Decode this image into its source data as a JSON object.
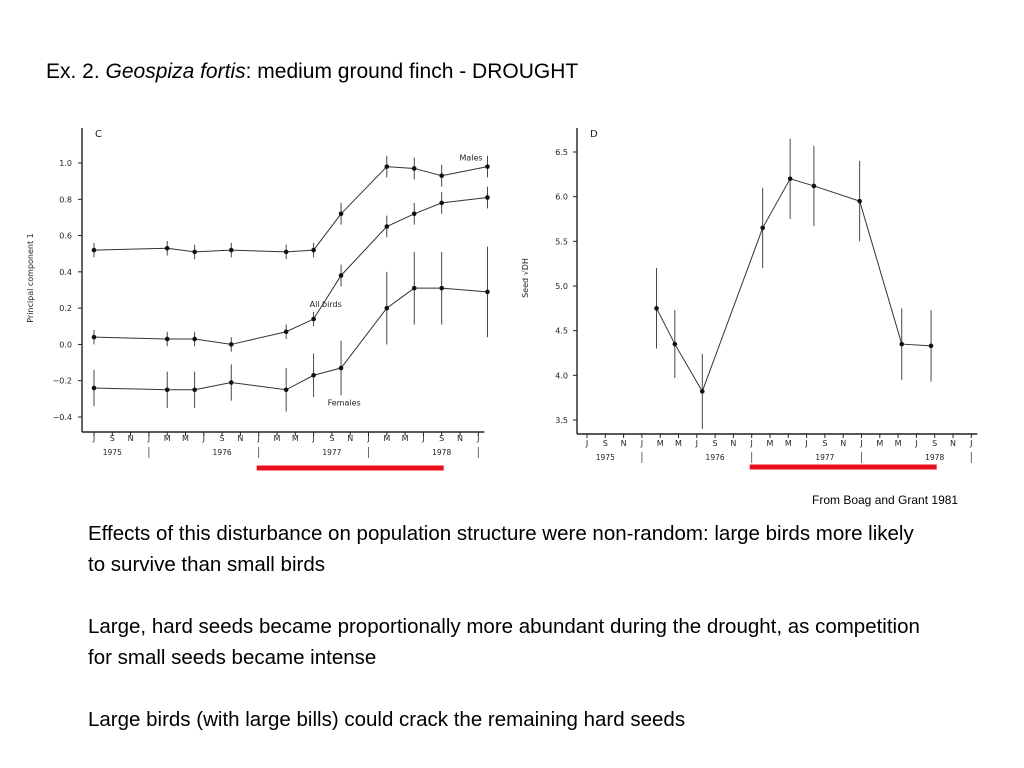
{
  "slide": {
    "title_prefix": "Ex. 2.",
    "title_species": "Geospiza fortis",
    "title_rest": ": medium ground finch - DROUGHT",
    "credit": "From Boag and Grant 1981",
    "paragraphs": [
      "Effects of this disturbance on population structure were non-random: large birds more likely to survive than small birds",
      "Large, hard seeds became proportionally more abundant during the drought, as competition for small seeds became intense",
      "Large birds (with large bills) could crack the remaining hard seeds"
    ],
    "drought_color": "#e8101a"
  },
  "chart_data": [
    {
      "type": "line",
      "panel": "C",
      "ylabel": "Principal component 1",
      "ylim": [
        -0.4,
        1.0
      ],
      "yticks": [
        -0.4,
        -0.2,
        0.0,
        0.2,
        0.4,
        0.6,
        0.8,
        1.0
      ],
      "ytick_labels": [
        "−0.4",
        "−0.2",
        "0.0",
        "0.2",
        "0.4",
        "0.6",
        "0.8",
        "1.0"
      ],
      "x_month_labels": [
        "J",
        "S",
        "N",
        "J",
        "M",
        "M",
        "J",
        "S",
        "N",
        "J",
        "M",
        "M",
        "J",
        "S",
        "N",
        "J",
        "M",
        "M",
        "J",
        "S",
        "N",
        "J"
      ],
      "x_year_labels": [
        "1975",
        "1976",
        "1977",
        "1978"
      ],
      "drought_period": [
        9,
        19
      ],
      "grid": false,
      "legend": "inline labels",
      "series": [
        {
          "name": "Males",
          "label_index": 10,
          "x": [
            0,
            4,
            5.5,
            7.5,
            10.5,
            12,
            13.5,
            16,
            17.5,
            19,
            21.5
          ],
          "y": [
            0.52,
            0.53,
            0.51,
            0.52,
            0.51,
            0.52,
            0.72,
            0.98,
            0.97,
            0.93,
            0.98
          ],
          "err": [
            0.04,
            0.04,
            0.04,
            0.04,
            0.04,
            0.04,
            0.06,
            0.06,
            0.06,
            0.06,
            0.06
          ]
        },
        {
          "name": "All birds",
          "label_index": 5,
          "x": [
            0,
            4,
            5.5,
            7.5,
            10.5,
            12,
            13.5,
            16,
            17.5,
            19,
            21.5
          ],
          "y": [
            0.04,
            0.03,
            0.03,
            0.0,
            0.07,
            0.14,
            0.38,
            0.65,
            0.72,
            0.78,
            0.81
          ],
          "err": [
            0.04,
            0.04,
            0.04,
            0.04,
            0.04,
            0.04,
            0.06,
            0.06,
            0.06,
            0.06,
            0.06
          ]
        },
        {
          "name": "Females",
          "label_index": 5,
          "x": [
            0,
            4,
            5.5,
            7.5,
            10.5,
            12,
            13.5,
            16,
            17.5,
            19,
            21.5
          ],
          "y": [
            -0.24,
            -0.25,
            -0.25,
            -0.21,
            -0.25,
            -0.17,
            -0.13,
            0.2,
            0.31,
            0.31,
            0.29
          ],
          "err": [
            0.1,
            0.1,
            0.1,
            0.1,
            0.12,
            0.12,
            0.15,
            0.2,
            0.2,
            0.2,
            0.25
          ]
        }
      ]
    },
    {
      "type": "line",
      "panel": "D",
      "ylabel": "Seed √DH",
      "ylim": [
        3.5,
        6.5
      ],
      "yticks": [
        3.5,
        4.0,
        4.5,
        5.0,
        5.5,
        6.0,
        6.5
      ],
      "ytick_labels": [
        "3.5",
        "4.0",
        "4.5",
        "5.0",
        "5.5",
        "6.0",
        "6.5"
      ],
      "x_month_labels": [
        "J",
        "S",
        "N",
        "J",
        "M",
        "M",
        "J",
        "S",
        "N",
        "J",
        "M",
        "M",
        "J",
        "S",
        "N",
        "J",
        "M",
        "M",
        "J",
        "S",
        "N",
        "J"
      ],
      "x_year_labels": [
        "1975",
        "1976",
        "1977",
        "1978"
      ],
      "drought_period": [
        9,
        19
      ],
      "grid": false,
      "series": [
        {
          "name": "",
          "x": [
            3.8,
            4.8,
            6.3,
            9.6,
            11.1,
            12.4,
            14.9,
            17.2,
            18.8
          ],
          "y": [
            4.75,
            4.35,
            3.82,
            5.65,
            6.2,
            6.12,
            5.95,
            4.35,
            4.33
          ],
          "err": [
            0.45,
            0.38,
            0.42,
            0.45,
            0.45,
            0.45,
            0.45,
            0.4,
            0.4
          ]
        }
      ]
    }
  ]
}
